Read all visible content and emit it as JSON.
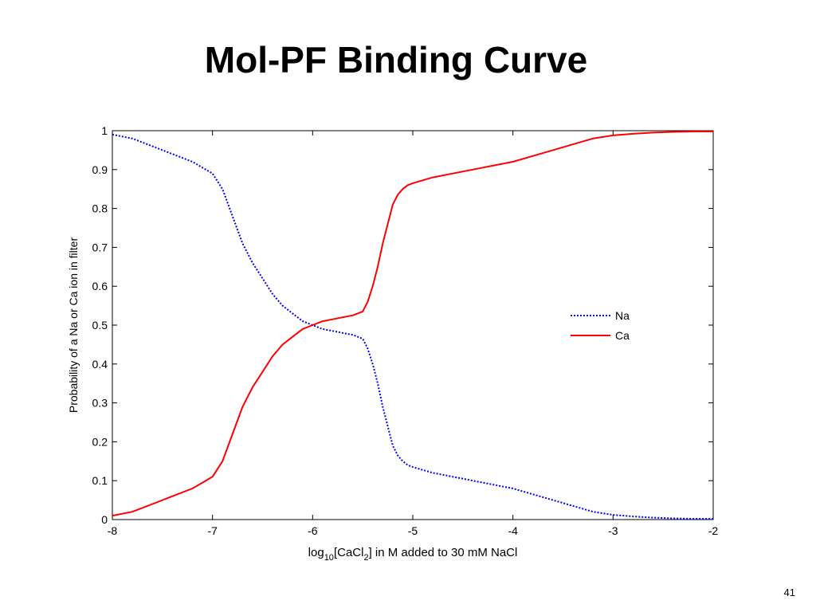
{
  "slide": {
    "title": "Mol-PF Binding Curve",
    "page_number": "41"
  },
  "chart_data": {
    "type": "line",
    "xlabel_prefix": "log",
    "xlabel_sub1": "10",
    "xlabel_mid": "[CaCl",
    "xlabel_sub2": "2",
    "xlabel_suffix": "] in M added to 30 mM NaCl",
    "ylabel": "Probability of a Na or Ca ion in filter",
    "xlim": [
      -8,
      -2
    ],
    "ylim": [
      0,
      1
    ],
    "xticks": [
      -8,
      -7,
      -6,
      -5,
      -4,
      -3,
      -2
    ],
    "xtick_labels": [
      "-8",
      "-7",
      "-6",
      "-5",
      "-4",
      "-3",
      "-2"
    ],
    "yticks": [
      0,
      0.1,
      0.2,
      0.3,
      0.4,
      0.5,
      0.6,
      0.7,
      0.8,
      0.9,
      1
    ],
    "ytick_labels": [
      "0",
      "0.1",
      "0.2",
      "0.3",
      "0.4",
      "0.5",
      "0.6",
      "0.7",
      "0.8",
      "0.9",
      "1"
    ],
    "grid": false,
    "legend_position": "right-middle",
    "series": [
      {
        "name": "Na",
        "color": "#0000ff",
        "style": "dotted",
        "x": [
          -8.0,
          -7.8,
          -7.6,
          -7.4,
          -7.2,
          -7.0,
          -6.9,
          -6.8,
          -6.7,
          -6.6,
          -6.5,
          -6.4,
          -6.3,
          -6.2,
          -6.1,
          -6.0,
          -5.9,
          -5.8,
          -5.7,
          -5.6,
          -5.5,
          -5.45,
          -5.4,
          -5.35,
          -5.3,
          -5.25,
          -5.2,
          -5.15,
          -5.1,
          -5.05,
          -5.0,
          -4.8,
          -4.6,
          -4.4,
          -4.2,
          -4.0,
          -3.8,
          -3.6,
          -3.4,
          -3.2,
          -3.0,
          -2.8,
          -2.6,
          -2.4,
          -2.2,
          -2.0
        ],
        "y": [
          0.99,
          0.98,
          0.96,
          0.94,
          0.92,
          0.89,
          0.85,
          0.78,
          0.71,
          0.66,
          0.62,
          0.58,
          0.55,
          0.53,
          0.51,
          0.5,
          0.49,
          0.485,
          0.48,
          0.475,
          0.465,
          0.44,
          0.4,
          0.35,
          0.29,
          0.24,
          0.19,
          0.165,
          0.15,
          0.14,
          0.135,
          0.12,
          0.11,
          0.1,
          0.09,
          0.08,
          0.065,
          0.05,
          0.035,
          0.02,
          0.012,
          0.008,
          0.005,
          0.003,
          0.002,
          0.002
        ]
      },
      {
        "name": "Ca",
        "color": "#ff0000",
        "style": "solid",
        "x": [
          -8.0,
          -7.8,
          -7.6,
          -7.4,
          -7.2,
          -7.0,
          -6.9,
          -6.8,
          -6.7,
          -6.6,
          -6.5,
          -6.4,
          -6.3,
          -6.2,
          -6.1,
          -6.0,
          -5.9,
          -5.8,
          -5.7,
          -5.6,
          -5.5,
          -5.45,
          -5.4,
          -5.35,
          -5.3,
          -5.25,
          -5.2,
          -5.15,
          -5.1,
          -5.05,
          -5.0,
          -4.8,
          -4.6,
          -4.4,
          -4.2,
          -4.0,
          -3.8,
          -3.6,
          -3.4,
          -3.2,
          -3.0,
          -2.8,
          -2.6,
          -2.4,
          -2.2,
          -2.0
        ],
        "y": [
          0.01,
          0.02,
          0.04,
          0.06,
          0.08,
          0.11,
          0.15,
          0.22,
          0.29,
          0.34,
          0.38,
          0.42,
          0.45,
          0.47,
          0.49,
          0.5,
          0.51,
          0.515,
          0.52,
          0.525,
          0.535,
          0.56,
          0.6,
          0.65,
          0.71,
          0.76,
          0.81,
          0.835,
          0.85,
          0.86,
          0.865,
          0.88,
          0.89,
          0.9,
          0.91,
          0.92,
          0.935,
          0.95,
          0.965,
          0.98,
          0.988,
          0.992,
          0.995,
          0.997,
          0.998,
          0.998
        ]
      }
    ]
  }
}
